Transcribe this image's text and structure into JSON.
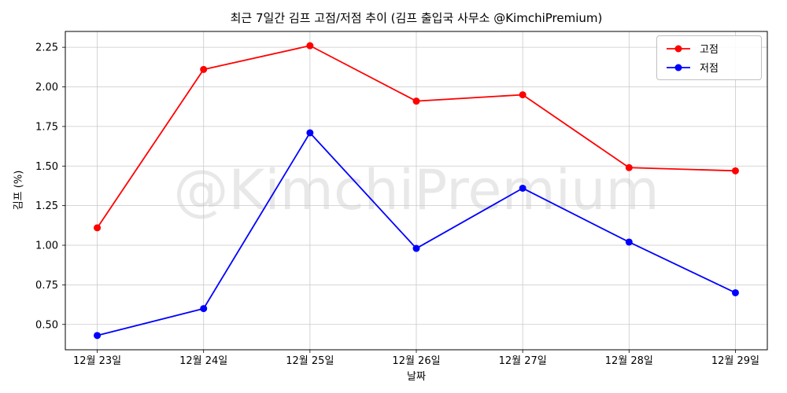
{
  "chart_data": {
    "type": "line",
    "title": "최근 7일간 김프 고점/저점 추이 (김프 출입국 사무소 @KimchiPremium)",
    "xlabel": "날짜",
    "ylabel": "김프 (%)",
    "watermark": "@KimchiPremium",
    "categories": [
      "12월 23일",
      "12월 24일",
      "12월 25일",
      "12월 26일",
      "12월 27일",
      "12월 28일",
      "12월 29일"
    ],
    "series": [
      {
        "name": "고점",
        "color": "#ff0000",
        "values": [
          1.11,
          2.11,
          2.26,
          1.91,
          1.95,
          1.49,
          1.47
        ]
      },
      {
        "name": "저점",
        "color": "#0000ff",
        "values": [
          0.43,
          0.6,
          1.71,
          0.98,
          1.36,
          1.02,
          0.7
        ]
      }
    ],
    "yticks": [
      0.5,
      0.75,
      1.0,
      1.25,
      1.5,
      1.75,
      2.0,
      2.25
    ],
    "ylim": [
      0.34,
      2.35
    ],
    "x_margin": 0.3,
    "grid": true,
    "legend_position": "upper right",
    "colors": {
      "grid": "#c9c9c9",
      "frame": "#000000",
      "background": "#ffffff"
    }
  }
}
